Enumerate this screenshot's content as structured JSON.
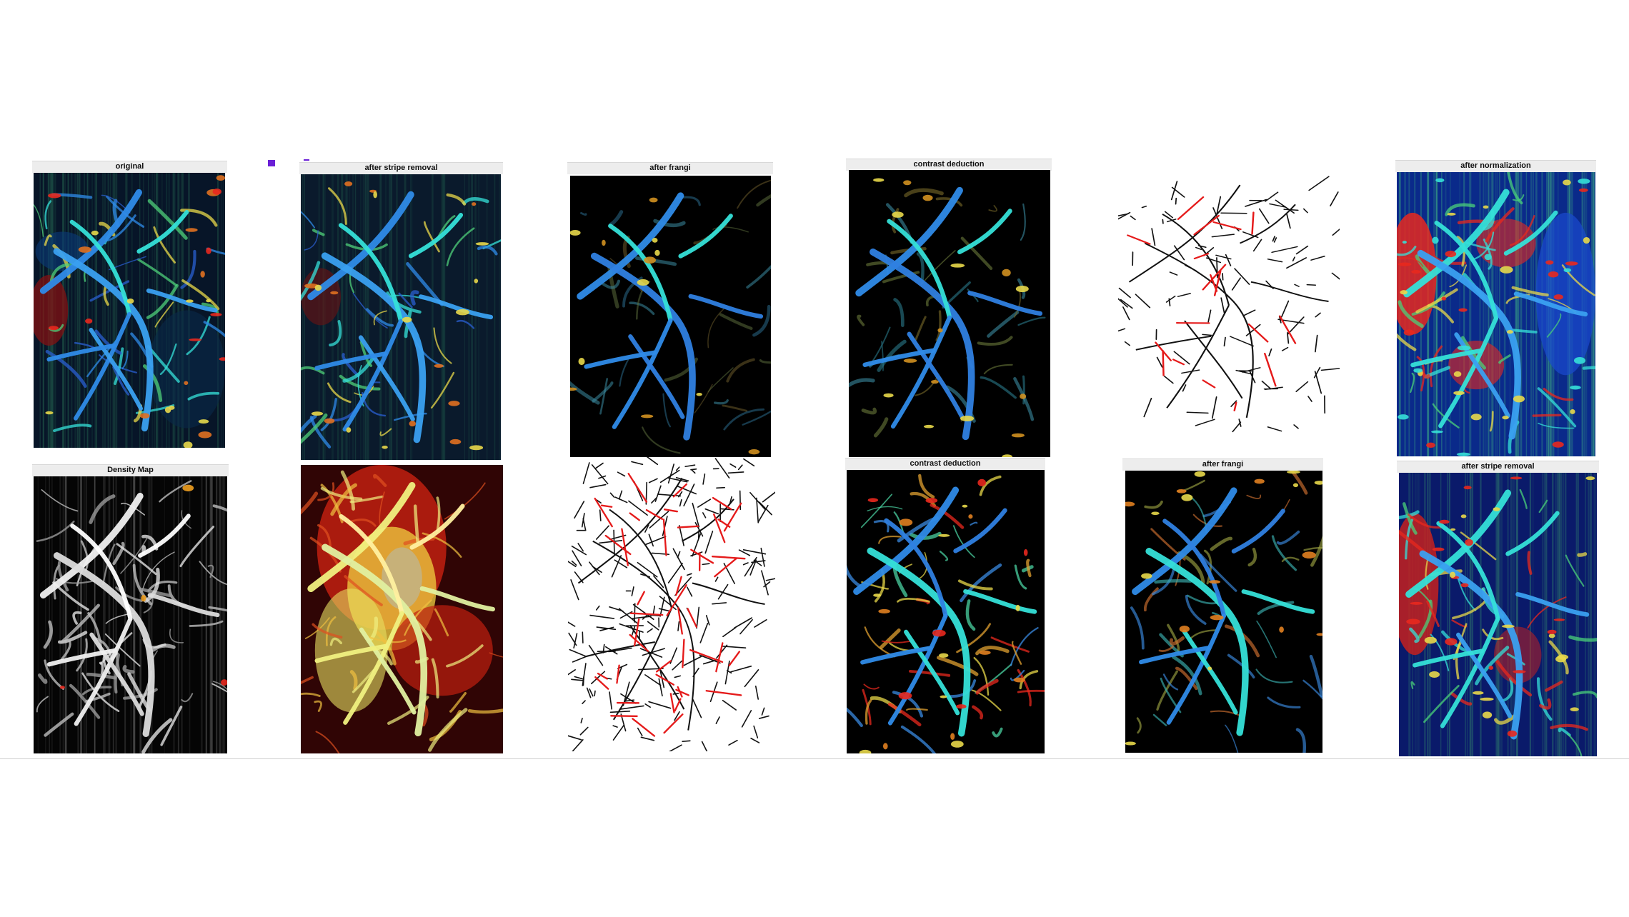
{
  "figure": {
    "titles": {
      "original": "original",
      "after_stripe_removal_top": "after stripe removal",
      "after_frangi_top": "after frangi",
      "contrast_deduction_top": "contrast deduction",
      "after_normalization": "after normalization",
      "density_map": "Density Map",
      "contrast_deduction_bottom": "contrast deduction",
      "after_frangi_bottom": "after frangi",
      "after_stripe_removal_bottom": "after stripe removal"
    },
    "colors": {
      "background": "#ffffff",
      "title_bar": "#ededed",
      "vessel_blue": "#2f8be8",
      "vessel_cyan": "#35e0d8",
      "vessel_yellow": "#e8d84a",
      "vessel_red": "#e8281e",
      "skeleton_black": "#111111",
      "skeleton_red": "#e51a1a",
      "marker_purple": "#6a1fd6"
    }
  }
}
